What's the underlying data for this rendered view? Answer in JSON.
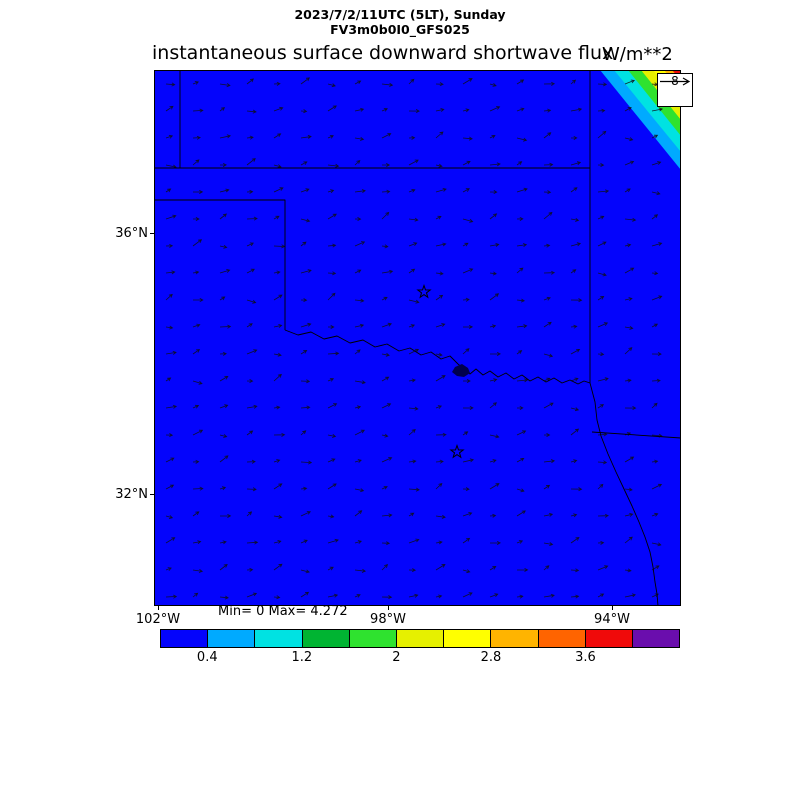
{
  "header": {
    "line1": "2023/7/2/11UTC (5LT), Sunday",
    "line2": "FV3m0b0I0_GFS025"
  },
  "title": {
    "text": "instantaneous surface downward shortwave flux",
    "units": "W/m**2"
  },
  "stats": "Min= 0 Max= 4.272",
  "quiver_key": {
    "value": "8"
  },
  "axes": {
    "lat": [
      "36°N",
      "32°N"
    ],
    "lon": [
      "102°W",
      "98°W",
      "94°W"
    ]
  },
  "map": {
    "fill_color": "#0404fc",
    "border_color": "#000000",
    "arrow_color": "#10101a",
    "marker_color": "#000000",
    "knot_color": "#00004d",
    "corner_band_colors": [
      "#00aaff",
      "#00e2e2",
      "#2fe22f",
      "#e6f000",
      "#ffff00",
      "#ffb400",
      "#f00a0a"
    ]
  },
  "colorbar": {
    "colors": [
      "#0404fc",
      "#00aaff",
      "#00e2e2",
      "#00b432",
      "#2fe22f",
      "#e6f000",
      "#ffff00",
      "#ffb400",
      "#ff6400",
      "#f00a0a",
      "#6a0dad"
    ],
    "segments": 11,
    "tick_labels": [
      "0.4",
      "1.2",
      "2",
      "2.8",
      "3.6"
    ],
    "tick_positions": [
      1,
      3,
      5,
      7,
      9
    ]
  },
  "chart_data": {
    "type": "heatmap",
    "title": "instantaneous surface downward shortwave flux",
    "units": "W/m**2",
    "valid_time": "2023/7/2/11UTC (5LT), Sunday",
    "model_run": "FV3m0b0I0_GFS025",
    "min": 0,
    "max": 4.272,
    "colorbar_range": [
      0,
      4.4
    ],
    "colorbar_ticks": [
      0.4,
      1.2,
      2,
      2.8,
      3.6
    ],
    "lat_ticks": [
      "36°N",
      "32°N"
    ],
    "lon_ticks": [
      "102°W",
      "98°W",
      "94°W"
    ],
    "field": "Surface downward shortwave flux is 0 (solid blue) across nearly the entire Oklahoma / North Texas domain; nonzero pre-sunrise values up to the max 4.272 W/m**2 appear only as thin diagonal cyan-green-yellow bands in the far northeast corner (sunrise terminator).",
    "overlays": [
      "wind vector quiver field, small arrows pointing generally east-northeast, reference arrow = 8",
      "state borders: Kansas-Oklahoma (37N), Oklahoma panhandle, Oklahoma-Texas Red River, Oklahoma-Missouri/Arkansas, Texas-Arkansas/Louisiana",
      "open star markers at Oklahoma City and Dallas, dark river-meander knot near Lake Texoma"
    ]
  }
}
